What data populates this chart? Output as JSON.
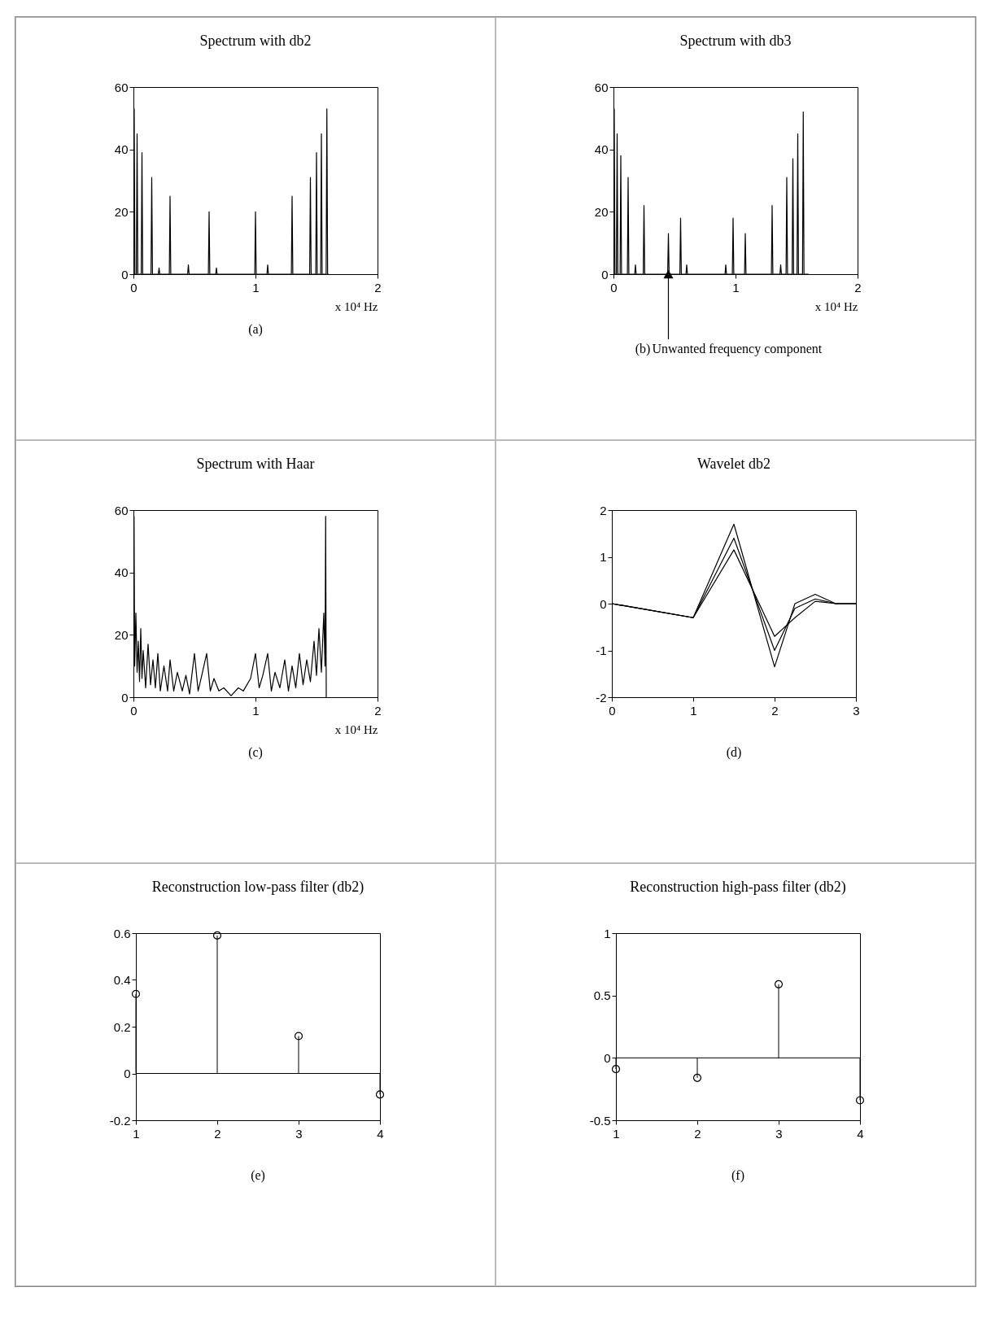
{
  "chart_data": [
    {
      "type": "line",
      "title": "Spectrum with db2",
      "xlabel": "x 10⁴ Hz",
      "annotations": [
        "(a)"
      ],
      "xlim": [
        0,
        2
      ],
      "xticks": [
        0,
        1,
        2
      ],
      "ylim": [
        0,
        60
      ],
      "yticks": [
        0,
        20,
        40,
        60
      ],
      "series": [
        {
          "color": "#000000",
          "x": [
            0,
            0.006,
            0.012,
            0.024,
            0.03,
            0.036,
            0.064,
            0.07,
            0.076,
            0.144,
            0.15,
            0.156,
            0.204,
            0.21,
            0.216,
            0.294,
            0.3,
            0.306,
            0.444,
            0.45,
            0.456,
            0.614,
            0.62,
            0.626,
            0.674,
            0.68,
            0.686,
            0.994,
            1.0,
            1.006,
            1.094,
            1.1,
            1.106,
            1.294,
            1.3,
            1.306,
            1.444,
            1.45,
            1.456,
            1.494,
            1.5,
            1.506,
            1.534,
            1.54,
            1.546,
            1.579,
            1.585,
            1.591,
            1.6
          ],
          "values": [
            0,
            53,
            0,
            0,
            45,
            0,
            0,
            39,
            0,
            0,
            31,
            0,
            0,
            2,
            0,
            0,
            25,
            0,
            0,
            3,
            0,
            0,
            20,
            0,
            0,
            2,
            0,
            0,
            20,
            0,
            0,
            3,
            0,
            0,
            25,
            0,
            0,
            31,
            0,
            0,
            39,
            0,
            0,
            45,
            0,
            0,
            53,
            0,
            0
          ]
        }
      ]
    },
    {
      "type": "line",
      "title": "Spectrum with db3",
      "xlabel": "x 10⁴ Hz",
      "annotations": [
        "(b)",
        {
          "text": "Unwanted frequency component",
          "x": 0.45,
          "y": 0
        }
      ],
      "xlim": [
        0,
        2
      ],
      "xticks": [
        0,
        1,
        2
      ],
      "ylim": [
        0,
        60
      ],
      "yticks": [
        0,
        20,
        40,
        60
      ],
      "series": [
        {
          "color": "#000000",
          "x": [
            0,
            0.006,
            0.012,
            0.024,
            0.03,
            0.036,
            0.054,
            0.06,
            0.066,
            0.114,
            0.12,
            0.126,
            0.174,
            0.18,
            0.186,
            0.244,
            0.25,
            0.256,
            0.444,
            0.45,
            0.456,
            0.544,
            0.55,
            0.556,
            0.594,
            0.6,
            0.606,
            0.914,
            0.92,
            0.926,
            0.974,
            0.98,
            0.986,
            1.074,
            1.08,
            1.086,
            1.294,
            1.3,
            1.306,
            1.364,
            1.37,
            1.376,
            1.414,
            1.42,
            1.426,
            1.464,
            1.47,
            1.476,
            1.504,
            1.51,
            1.516,
            1.549,
            1.555,
            1.561,
            1.6
          ],
          "values": [
            0,
            53,
            0,
            0,
            45,
            0,
            0,
            38,
            0,
            0,
            31,
            0,
            0,
            3,
            0,
            0,
            22,
            0,
            0,
            13,
            0,
            0,
            18,
            0,
            0,
            3,
            0,
            0,
            3,
            0,
            0,
            18,
            0,
            0,
            13,
            0,
            0,
            22,
            0,
            0,
            3,
            0,
            0,
            31,
            0,
            0,
            37,
            0,
            0,
            45,
            0,
            0,
            52,
            0,
            0
          ]
        }
      ]
    },
    {
      "type": "line",
      "title": "Spectrum with Haar",
      "xlabel": "x 10⁴ Hz",
      "annotations": [
        "(c)"
      ],
      "xlim": [
        0,
        2
      ],
      "xticks": [
        0,
        1,
        2
      ],
      "ylim": [
        0,
        60
      ],
      "yticks": [
        0,
        20,
        40,
        60
      ],
      "series": [
        {
          "color": "#000000",
          "x": [
            0,
            0.005,
            0.01,
            0.02,
            0.03,
            0.04,
            0.05,
            0.06,
            0.07,
            0.08,
            0.1,
            0.12,
            0.14,
            0.16,
            0.18,
            0.2,
            0.22,
            0.25,
            0.28,
            0.3,
            0.33,
            0.36,
            0.4,
            0.43,
            0.46,
            0.5,
            0.53,
            0.56,
            0.6,
            0.63,
            0.66,
            0.7,
            0.74,
            0.8,
            0.86,
            0.9,
            0.96,
            1.0,
            1.03,
            1.06,
            1.1,
            1.13,
            1.16,
            1.2,
            1.24,
            1.27,
            1.3,
            1.33,
            1.36,
            1.39,
            1.42,
            1.45,
            1.48,
            1.5,
            1.52,
            1.54,
            1.56,
            1.57,
            1.575,
            1.58
          ],
          "values": [
            0,
            58,
            10,
            27,
            8,
            18,
            5,
            22,
            6,
            15,
            3,
            17,
            4,
            12,
            3,
            14,
            2,
            10,
            2,
            12,
            2,
            8,
            2,
            7,
            1,
            14,
            2,
            7,
            14,
            2,
            6,
            2,
            3,
            0.5,
            3,
            2,
            6,
            14,
            3,
            7,
            14,
            2,
            8,
            3,
            12,
            2,
            10,
            3,
            14,
            4,
            12,
            5,
            18,
            7,
            22,
            8,
            27,
            10,
            58,
            0
          ]
        }
      ]
    },
    {
      "type": "line",
      "title": "Wavelet db2",
      "annotations": [
        "(d)"
      ],
      "xlim": [
        0,
        3
      ],
      "xticks": [
        0,
        1,
        2,
        3
      ],
      "ylim": [
        -2,
        2
      ],
      "yticks": [
        -2,
        -1,
        0,
        1,
        2
      ],
      "x": [
        0,
        1,
        1.5,
        2,
        2.25,
        2.5,
        2.75,
        3
      ],
      "series": [
        {
          "color": "#000000",
          "values": [
            0,
            -0.3,
            1.7,
            -1.35,
            0,
            0.2,
            0,
            0
          ]
        },
        {
          "color": "#000000",
          "values": [
            0,
            -0.3,
            1.4,
            -1.0,
            -0.1,
            0.1,
            0,
            0
          ]
        },
        {
          "color": "#000000",
          "values": [
            0,
            -0.3,
            1.15,
            -0.7,
            -0.3,
            0.05,
            0,
            0
          ]
        }
      ]
    },
    {
      "type": "lollipop",
      "title": "Reconstruction low-pass filter (db2)",
      "annotations": [
        "(e)"
      ],
      "x": [
        1,
        2,
        3,
        4
      ],
      "values": [
        0.34,
        0.59,
        0.16,
        -0.09
      ],
      "color": "#000000",
      "marker": "circle",
      "xlim": [
        1,
        4
      ],
      "xticks": [
        1,
        2,
        3,
        4
      ],
      "ylim": [
        -0.2,
        0.6
      ],
      "yticks": [
        -0.2,
        0,
        0.2,
        0.4,
        0.6
      ],
      "ref_lines": [
        {
          "axis": "y",
          "value": 0
        }
      ]
    },
    {
      "type": "lollipop",
      "title": "Reconstruction high-pass filter (db2)",
      "annotations": [
        "(f)"
      ],
      "x": [
        1,
        2,
        3,
        4
      ],
      "values": [
        -0.09,
        -0.16,
        0.59,
        -0.34
      ],
      "color": "#000000",
      "marker": "circle",
      "xlim": [
        1,
        4
      ],
      "xticks": [
        1,
        2,
        3,
        4
      ],
      "ylim": [
        -0.5,
        1
      ],
      "yticks": [
        -0.5,
        0,
        0.5,
        1
      ],
      "ref_lines": [
        {
          "axis": "y",
          "value": 0
        }
      ]
    }
  ]
}
